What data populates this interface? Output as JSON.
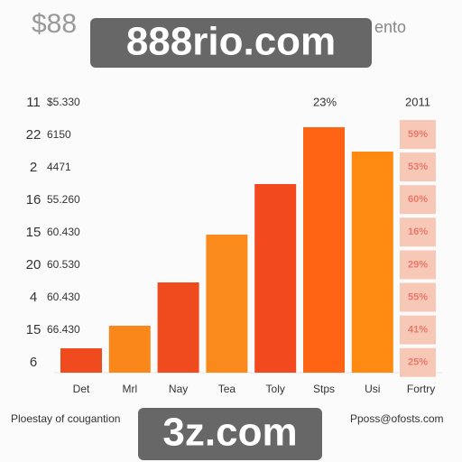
{
  "header": {
    "title": "$88",
    "side_text": "ento",
    "top_label": "23%",
    "year": "2011"
  },
  "watermarks": [
    "888rio.com",
    "3z.com"
  ],
  "footer": {
    "left": "Ploestay of cougantion",
    "right": "Pposs@ofosts.com"
  },
  "table": {
    "rows": [
      [
        "11",
        "$5.330"
      ],
      [
        "22",
        "6150"
      ],
      [
        "2",
        "4471"
      ],
      [
        "16",
        "55.260"
      ],
      [
        "15",
        "60.430"
      ],
      [
        "20",
        "60.530"
      ],
      [
        "4",
        "60.430"
      ],
      [
        "15",
        "66.430"
      ],
      [
        "6"
      ]
    ]
  },
  "percentages": [
    "59%",
    "53%",
    "60%",
    "16%",
    "29%",
    "55%",
    "41%",
    "25%"
  ],
  "chart_data": {
    "type": "bar",
    "categories": [
      "Det",
      "Mrl",
      "Nay",
      "Tea",
      "Toly",
      "Stps",
      "Usi",
      "Fortry"
    ],
    "values": [
      27,
      52,
      100,
      153,
      209,
      272,
      245,
      null
    ],
    "colors": [
      "#f04a1f",
      "#f9871a",
      "#f04a1f",
      "#fa8a1c",
      "#f2491f",
      "#ff6414",
      "#ff8a12",
      null
    ]
  }
}
